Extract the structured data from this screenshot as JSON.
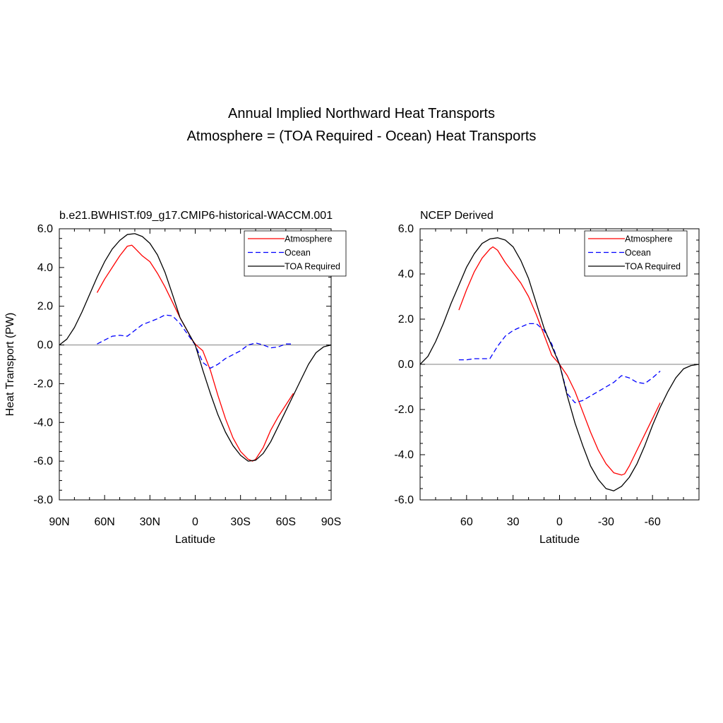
{
  "title": {
    "line1": "Annual Implied Northward Heat Transports",
    "line2": "Atmosphere = (TOA Required - Ocean) Heat Transports"
  },
  "colors": {
    "atmosphere": "#ff0000",
    "ocean": "#0000ff",
    "toa": "#000000",
    "zero_line": "#808080"
  },
  "chart_data": [
    {
      "type": "line",
      "title": "b.e21.BWHIST.f09_g17.CMIP6-historical-WACCM.001",
      "xlabel": "Latitude",
      "ylabel": "Heat Transport (PW)",
      "xlim": [
        90,
        -90
      ],
      "ylim": [
        -8,
        6
      ],
      "xticks": [
        90,
        60,
        30,
        0,
        -30,
        -60,
        -90
      ],
      "xtick_labels": [
        "90N",
        "60N",
        "30N",
        "0",
        "30S",
        "60S",
        "90S"
      ],
      "yticks": [
        6,
        4,
        2,
        0,
        -2,
        -4,
        -6,
        -8
      ],
      "ytick_labels": [
        "6.0",
        "4.0",
        "2.0",
        "0.0",
        "-2.0",
        "-4.0",
        "-6.0",
        "-8.0"
      ],
      "legend": {
        "position": "top-right",
        "entries": [
          "Atmosphere",
          "Ocean",
          "TOA Required"
        ]
      },
      "grid": false,
      "series": [
        {
          "name": "Atmosphere",
          "style": "solid",
          "color": "#ff0000",
          "x": [
            65,
            60,
            55,
            50,
            45,
            42,
            40,
            35,
            30,
            25,
            20,
            15,
            10,
            5,
            2,
            0,
            -2,
            -5,
            -10,
            -15,
            -20,
            -25,
            -30,
            -35,
            -38,
            -40,
            -45,
            -50,
            -55,
            -60,
            -65
          ],
          "y": [
            2.7,
            3.4,
            4.0,
            4.6,
            5.1,
            5.15,
            5.0,
            4.6,
            4.3,
            3.7,
            3.0,
            2.2,
            1.4,
            0.7,
            0.25,
            0.05,
            -0.1,
            -0.3,
            -1.3,
            -2.6,
            -3.8,
            -4.8,
            -5.5,
            -5.9,
            -6.0,
            -5.9,
            -5.3,
            -4.4,
            -3.7,
            -3.1,
            -2.5
          ]
        },
        {
          "name": "Ocean",
          "style": "dashed",
          "color": "#0000ff",
          "x": [
            65,
            60,
            55,
            50,
            45,
            40,
            35,
            30,
            25,
            20,
            15,
            10,
            5,
            0,
            -5,
            -10,
            -15,
            -20,
            -25,
            -30,
            -35,
            -40,
            -45,
            -50,
            -55,
            -60,
            -65
          ],
          "y": [
            0.05,
            0.25,
            0.45,
            0.5,
            0.45,
            0.75,
            1.05,
            1.2,
            1.35,
            1.55,
            1.5,
            1.1,
            0.55,
            0.0,
            -0.9,
            -1.2,
            -1.0,
            -0.7,
            -0.5,
            -0.3,
            0.0,
            0.1,
            0.0,
            -0.15,
            -0.1,
            0.05,
            0.05
          ]
        },
        {
          "name": "TOA Required",
          "style": "solid",
          "color": "#000000",
          "x": [
            90,
            85,
            80,
            75,
            70,
            65,
            60,
            55,
            50,
            45,
            40,
            35,
            30,
            25,
            20,
            15,
            10,
            5,
            0,
            -5,
            -10,
            -15,
            -20,
            -25,
            -30,
            -35,
            -40,
            -45,
            -50,
            -55,
            -60,
            -65,
            -70,
            -75,
            -80,
            -85,
            -90
          ],
          "y": [
            0.0,
            0.3,
            0.9,
            1.7,
            2.6,
            3.5,
            4.3,
            4.95,
            5.4,
            5.7,
            5.75,
            5.6,
            5.25,
            4.65,
            3.75,
            2.6,
            1.4,
            0.7,
            0.0,
            -1.3,
            -2.5,
            -3.6,
            -4.5,
            -5.2,
            -5.7,
            -6.0,
            -5.95,
            -5.6,
            -5.0,
            -4.2,
            -3.4,
            -2.6,
            -1.8,
            -1.0,
            -0.4,
            -0.1,
            0.0
          ]
        }
      ]
    },
    {
      "type": "line",
      "title": "NCEP Derived",
      "xlabel": "Latitude",
      "ylabel": "",
      "xlim": [
        90,
        -90
      ],
      "ylim": [
        -6,
        6
      ],
      "xticks": [
        60,
        30,
        0,
        -30,
        -60
      ],
      "xtick_labels": [
        "60",
        "30",
        "0",
        "-30",
        "-60"
      ],
      "yticks": [
        6,
        4,
        2,
        0,
        -2,
        -4,
        -6
      ],
      "ytick_labels": [
        "6.0",
        "4.0",
        "2.0",
        "0.0",
        "-2.0",
        "-4.0",
        "-6.0"
      ],
      "legend": {
        "position": "top-right",
        "entries": [
          "Atmosphere",
          "Ocean",
          "TOA Required"
        ]
      },
      "grid": false,
      "series": [
        {
          "name": "Atmosphere",
          "style": "solid",
          "color": "#ff0000",
          "x": [
            65,
            60,
            55,
            50,
            45,
            43,
            40,
            35,
            30,
            25,
            20,
            15,
            10,
            5,
            0,
            -5,
            -10,
            -15,
            -20,
            -25,
            -30,
            -35,
            -40,
            -42,
            -45,
            -50,
            -55,
            -60,
            -65
          ],
          "y": [
            2.4,
            3.3,
            4.1,
            4.7,
            5.1,
            5.2,
            5.05,
            4.5,
            4.05,
            3.6,
            3.0,
            2.2,
            1.3,
            0.4,
            0.0,
            -0.5,
            -1.2,
            -2.1,
            -3.0,
            -3.8,
            -4.4,
            -4.8,
            -4.9,
            -4.85,
            -4.5,
            -3.8,
            -3.1,
            -2.4,
            -1.7
          ]
        },
        {
          "name": "Ocean",
          "style": "dashed",
          "color": "#0000ff",
          "x": [
            65,
            60,
            55,
            50,
            45,
            40,
            35,
            30,
            25,
            20,
            15,
            10,
            5,
            0,
            -5,
            -10,
            -15,
            -20,
            -25,
            -30,
            -35,
            -40,
            -45,
            -50,
            -55,
            -60,
            -65
          ],
          "y": [
            0.2,
            0.2,
            0.25,
            0.25,
            0.25,
            0.8,
            1.25,
            1.5,
            1.65,
            1.8,
            1.8,
            1.5,
            0.9,
            0.0,
            -1.3,
            -1.7,
            -1.6,
            -1.4,
            -1.2,
            -1.0,
            -0.8,
            -0.5,
            -0.6,
            -0.8,
            -0.85,
            -0.6,
            -0.3
          ]
        },
        {
          "name": "TOA Required",
          "style": "solid",
          "color": "#000000",
          "x": [
            90,
            85,
            80,
            75,
            70,
            65,
            60,
            55,
            50,
            45,
            40,
            35,
            30,
            25,
            20,
            15,
            10,
            5,
            0,
            -5,
            -10,
            -15,
            -20,
            -25,
            -30,
            -35,
            -40,
            -45,
            -50,
            -55,
            -60,
            -65,
            -70,
            -75,
            -80,
            -85,
            -90
          ],
          "y": [
            0.0,
            0.35,
            1.0,
            1.8,
            2.7,
            3.5,
            4.3,
            4.9,
            5.35,
            5.55,
            5.6,
            5.5,
            5.2,
            4.6,
            3.8,
            2.7,
            1.6,
            0.8,
            0.0,
            -1.4,
            -2.6,
            -3.6,
            -4.5,
            -5.1,
            -5.5,
            -5.6,
            -5.4,
            -5.0,
            -4.4,
            -3.6,
            -2.7,
            -1.9,
            -1.2,
            -0.6,
            -0.2,
            -0.05,
            0.0
          ]
        }
      ]
    }
  ]
}
